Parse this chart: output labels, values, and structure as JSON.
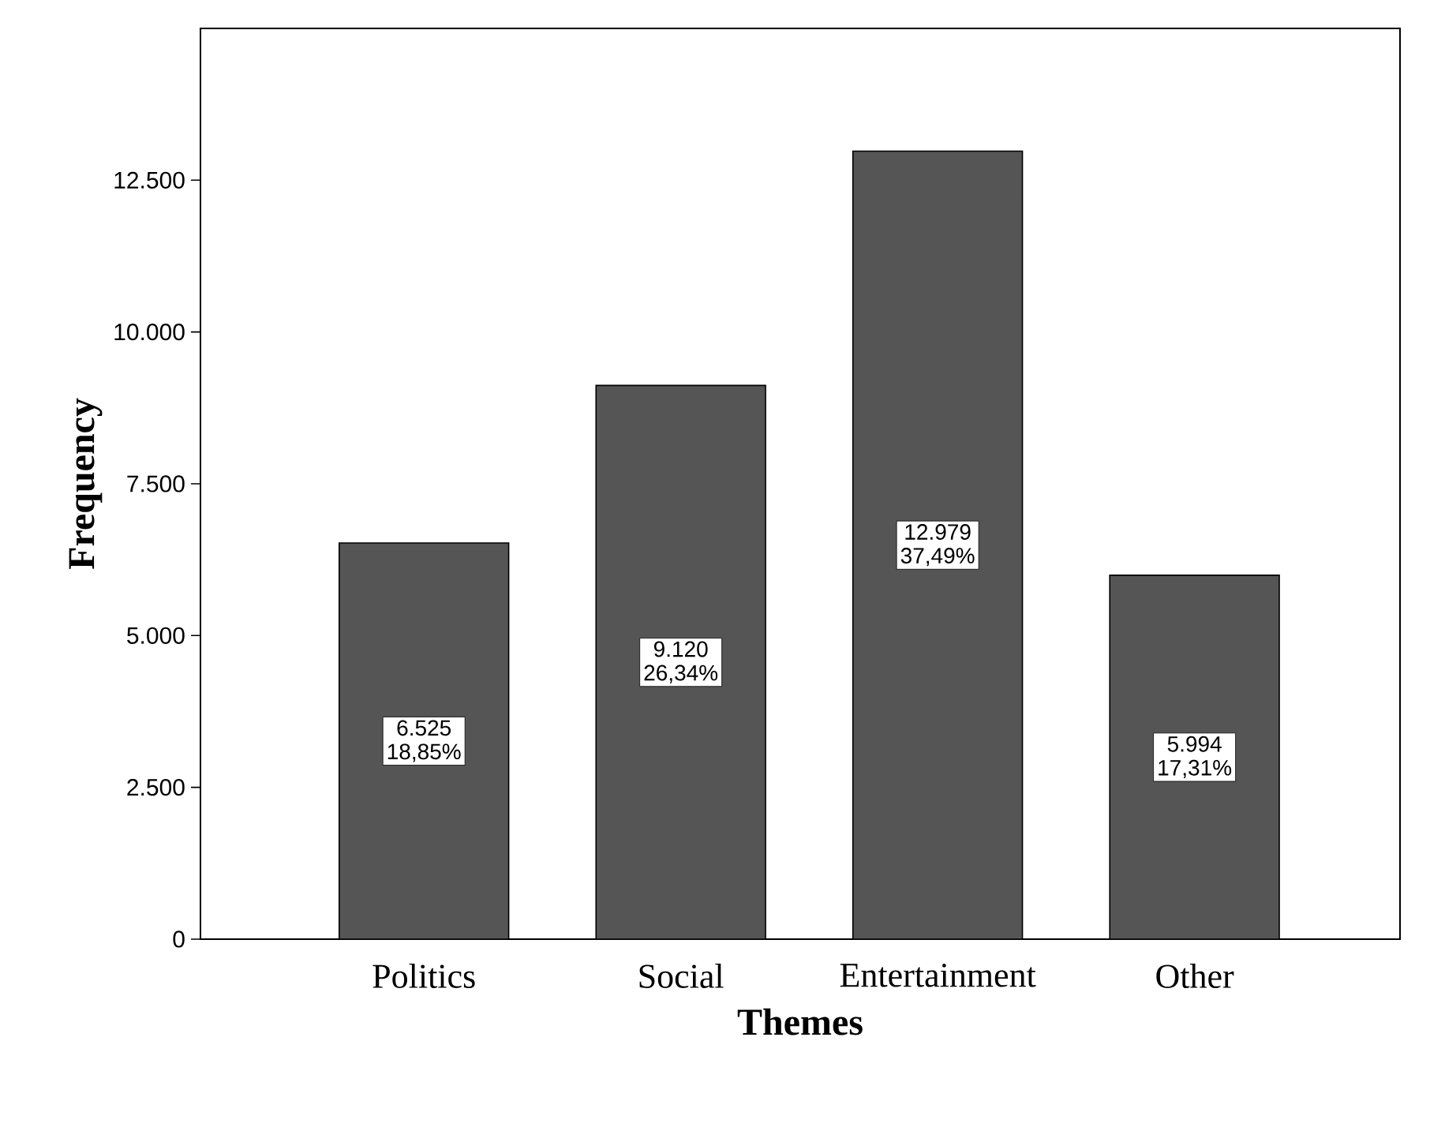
{
  "chart_data": {
    "type": "bar",
    "xlabel": "Themes",
    "ylabel": "Frequency",
    "categories": [
      "Politics",
      "Social",
      "Entertainment",
      "Other"
    ],
    "values": [
      6525,
      9120,
      12979,
      5994
    ],
    "value_labels": [
      "6.525 18,85%",
      "9.120 26,34%",
      "12.979 37,49%",
      "5.994 17,31%"
    ],
    "color": "#555555",
    "ylim": [
      0,
      15000
    ],
    "yticks": [
      0,
      {
        "value": 2500,
        "label": "2.500"
      },
      {
        "value": 5000,
        "label": "5.000"
      },
      {
        "value": 7500,
        "label": "7.500"
      },
      {
        "value": 10000,
        "label": "10.000"
      },
      {
        "value": 12500,
        "label": "12.500"
      }
    ]
  }
}
